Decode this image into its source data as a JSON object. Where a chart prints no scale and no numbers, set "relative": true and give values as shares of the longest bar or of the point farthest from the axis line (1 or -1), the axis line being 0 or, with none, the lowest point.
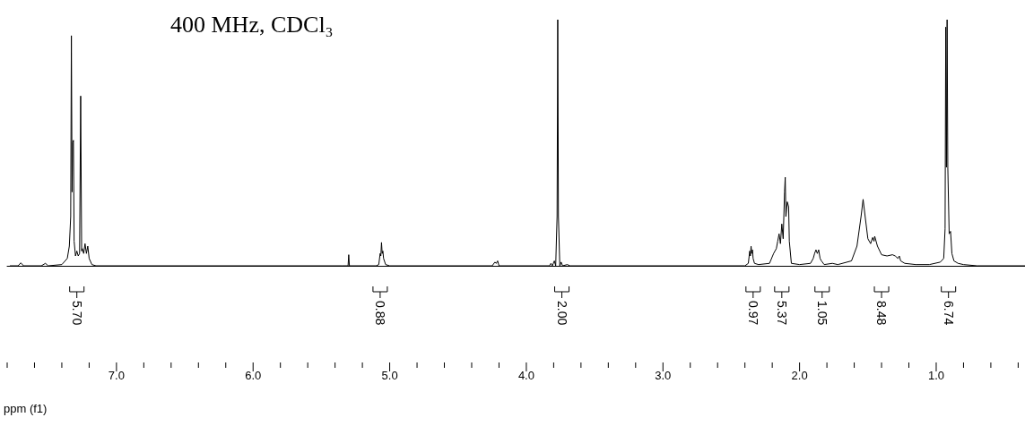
{
  "chart_data": {
    "type": "line",
    "title": "400 MHz, CDCl₃",
    "xlabel": "ppm (f1)",
    "color": "#000000",
    "relative": true,
    "xlim": [
      7.8,
      0.35
    ],
    "xticks": [
      {
        "value": 7.0,
        "label": "7.0"
      },
      {
        "value": 6.0,
        "label": "6.0"
      },
      {
        "value": 5.0,
        "label": "5.0"
      },
      {
        "value": 4.0,
        "label": "4.0"
      },
      {
        "value": 3.0,
        "label": "3.0"
      },
      {
        "value": 2.0,
        "label": "2.0"
      },
      {
        "value": 1.0,
        "label": "1.0"
      }
    ],
    "x": [
      7.78,
      7.72,
      7.7,
      7.68,
      7.55,
      7.52,
      7.5,
      7.4,
      7.36,
      7.345,
      7.335,
      7.33,
      7.325,
      7.32,
      7.315,
      7.31,
      7.3,
      7.29,
      7.28,
      7.27,
      7.262,
      7.255,
      7.25,
      7.24,
      7.23,
      7.22,
      7.21,
      7.2,
      7.18,
      7.15,
      5.35,
      5.305,
      5.3,
      5.295,
      5.1,
      5.08,
      5.07,
      5.065,
      5.06,
      5.055,
      5.05,
      5.045,
      5.03,
      5.0,
      4.25,
      4.23,
      4.22,
      4.21,
      4.2,
      3.83,
      3.82,
      3.81,
      3.795,
      3.785,
      3.775,
      3.77,
      3.765,
      3.755,
      3.745,
      3.735,
      3.7,
      3.68,
      2.4,
      2.375,
      2.365,
      2.36,
      2.355,
      2.35,
      2.345,
      2.34,
      2.33,
      2.3,
      2.22,
      2.19,
      2.17,
      2.16,
      2.15,
      2.14,
      2.13,
      2.12,
      2.11,
      2.105,
      2.1,
      2.09,
      2.08,
      2.075,
      2.06,
      2.0,
      1.92,
      1.9,
      1.89,
      1.88,
      1.87,
      1.86,
      1.85,
      1.84,
      1.82,
      1.76,
      1.72,
      1.62,
      1.58,
      1.55,
      1.535,
      1.52,
      1.5,
      1.48,
      1.465,
      1.455,
      1.45,
      1.43,
      1.4,
      1.36,
      1.32,
      1.3,
      1.28,
      1.27,
      1.26,
      1.23,
      1.15,
      1.05,
      0.97,
      0.945,
      0.935,
      0.93,
      0.925,
      0.92,
      0.915,
      0.905,
      0.895,
      0.885,
      0.87,
      0.84,
      0.8,
      0.7,
      0.35
    ],
    "values": [
      0,
      0,
      0.012,
      0,
      0,
      0.01,
      0,
      0.005,
      0.03,
      0.08,
      0.2,
      0.935,
      0.3,
      0.5,
      0.51,
      0.1,
      0.04,
      0.06,
      0.04,
      0.05,
      0.69,
      0.06,
      0.07,
      0.05,
      0.09,
      0.05,
      0.08,
      0.03,
      0.005,
      0,
      0,
      0,
      0.045,
      0,
      0,
      0.005,
      0.05,
      0.04,
      0.095,
      0.05,
      0.06,
      0.03,
      0.005,
      0,
      0,
      0.015,
      0.01,
      0.02,
      0,
      0,
      0.01,
      0,
      0.02,
      0,
      0.2,
      1.0,
      0.2,
      0,
      0.015,
      0,
      0.005,
      0,
      0,
      0.01,
      0.06,
      0.04,
      0.08,
      0.05,
      0.065,
      0.03,
      0.01,
      0.005,
      0.01,
      0.05,
      0.07,
      0.1,
      0.13,
      0.09,
      0.17,
      0.11,
      0.3,
      0.36,
      0.2,
      0.26,
      0.24,
      0.1,
      0.01,
      0.005,
      0.01,
      0.03,
      0.05,
      0.065,
      0.05,
      0.065,
      0.03,
      0.02,
      0.005,
      0.01,
      0.005,
      0.02,
      0.08,
      0.2,
      0.27,
      0.2,
      0.11,
      0.09,
      0.115,
      0.1,
      0.12,
      0.08,
      0.045,
      0.04,
      0.045,
      0.04,
      0.03,
      0.04,
      0.02,
      0.01,
      0.005,
      0.005,
      0.015,
      0.03,
      0.15,
      0.97,
      0.4,
      1.0,
      0.4,
      0.13,
      0.14,
      0.05,
      0.02,
      0.01,
      0.005,
      0,
      0
    ],
    "annotations": [
      {
        "text": "5.70",
        "x": 7.29
      },
      {
        "text": "0.88",
        "x": 5.07
      },
      {
        "text": "2.00",
        "x": 3.74
      },
      {
        "text": "0.97",
        "x": 2.34
      },
      {
        "text": "5.37",
        "x": 2.13
      },
      {
        "text": "1.05",
        "x": 1.835
      },
      {
        "text": "8.48",
        "x": 1.4
      },
      {
        "text": "6.74",
        "x": 0.91
      }
    ]
  }
}
